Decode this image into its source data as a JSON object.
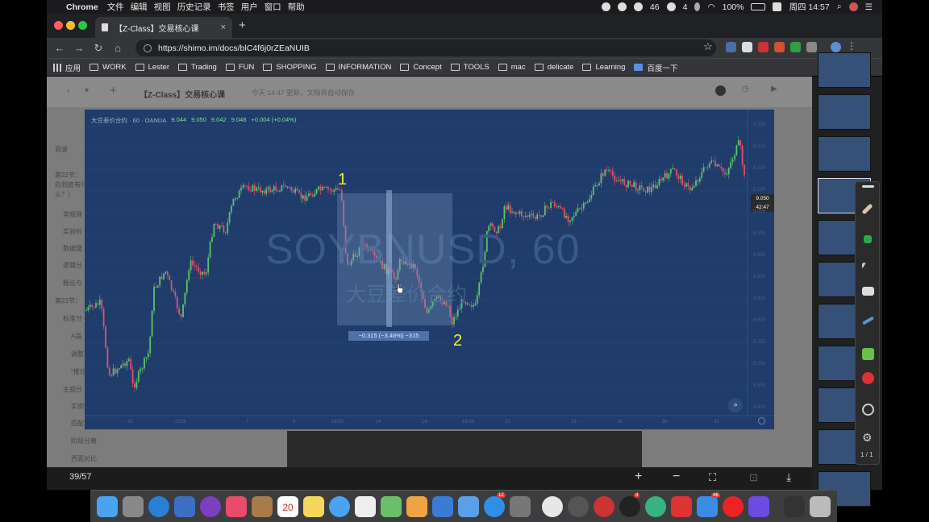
{
  "menubar": {
    "app": "Chrome",
    "items": [
      "文件",
      "编辑",
      "视图",
      "历史记录",
      "书签",
      "用户",
      "窗口",
      "帮助"
    ],
    "status": {
      "count1": "46",
      "count2": "4",
      "battery": "100%",
      "clock": "周四 14:57"
    }
  },
  "tab": {
    "title": "【Z-Class】交易核心课",
    "close": "×",
    "new": "+"
  },
  "address": {
    "url": "https://shimo.im/docs/blC4f6j0rZEaNUIB"
  },
  "bookmarks": [
    {
      "label": "应用",
      "kind": "apps"
    },
    {
      "label": "WORK"
    },
    {
      "label": "Lester"
    },
    {
      "label": "Trading"
    },
    {
      "label": "FUN"
    },
    {
      "label": "SHOPPING"
    },
    {
      "label": "INFORMATION"
    },
    {
      "label": "Concept"
    },
    {
      "label": "TOOLS"
    },
    {
      "label": "mac"
    },
    {
      "label": "delicate"
    },
    {
      "label": "Learning"
    },
    {
      "label": "百度一下"
    }
  ],
  "doc": {
    "title": "【Z-Class】交易核心课",
    "saved": "今天 14:47 更新，文档将自动保存",
    "outline": [
      "目录",
      "第22节：",
      "的到底有什",
      "么？）",
      "常规理",
      "实验检",
      "数据暨",
      "逻辑分",
      "稳论与",
      "第23节：",
      "标准分",
      "A品",
      "调整",
      "\"推比",
      "主观分",
      "实例",
      "匹配",
      "阶段分离",
      "西面对比"
    ]
  },
  "chart": {
    "legend": {
      "symbol": "大豆差价合约 · 60 · OANDA",
      "o": "9.044",
      "h": "9.050",
      "l": "9.042",
      "c": "9.048",
      "chg": "+0.004 (+0.04%)"
    },
    "watermark": {
      "line1": "SOYBNUSD, 60",
      "line2": "大豆差价合约"
    },
    "measure": "−0.315 (−3.46%) −315",
    "annotations": {
      "a1": "1",
      "a2": "2"
    },
    "price_tag": "9.050",
    "countdown": "42:47",
    "yticks": [
      "9.250",
      "9.200",
      "9.150",
      "9.100",
      "9.050",
      "9.000",
      "8.950",
      "8.900",
      "8.850",
      "8.800",
      "8.750",
      "8.700",
      "8.650",
      "8.600"
    ],
    "xticks": [
      "26",
      "2019",
      "7",
      "9",
      "18:00",
      "14",
      "16",
      "18:00",
      "21",
      "23",
      "28",
      "30",
      "31"
    ]
  },
  "viewer": {
    "counter": "39/57",
    "page": "1 / 1"
  },
  "dock": {
    "calendar_day": "20",
    "badge1": "12",
    "badge2": "4",
    "badge3": "46"
  }
}
